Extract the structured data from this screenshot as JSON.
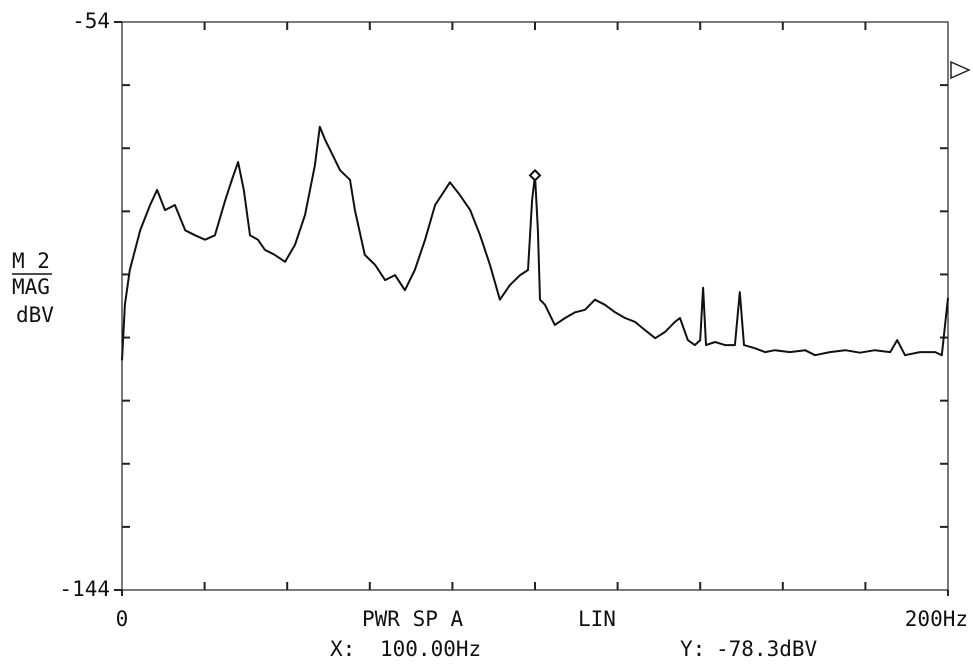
{
  "chart_data": {
    "type": "line",
    "ylabel_lines": [
      "M 2",
      "MAG",
      "dBV"
    ],
    "trace_label": "PWR SP A",
    "scale_label": "LIN",
    "marker": {
      "x": 100,
      "y": -78.3,
      "x_prefix": "X:",
      "x_label": "100.00Hz",
      "y_prefix": "Y:",
      "y_label": "-78.3dBV"
    },
    "xlim": [
      0,
      200
    ],
    "ylim": [
      -144,
      -54
    ],
    "xticks": [
      0,
      {
        "value": 200,
        "label": "200Hz"
      }
    ],
    "yticks": [
      -144,
      -54
    ],
    "x": [
      0,
      0.7,
      1.9,
      4.4,
      6.8,
      8.5,
      10.4,
      12.8,
      15.3,
      17.7,
      20.1,
      22.5,
      25.0,
      26.6,
      28.1,
      29.5,
      31.0,
      32.9,
      34.6,
      37.0,
      39.5,
      41.9,
      44.3,
      46.7,
      47.9,
      49.2,
      50.4,
      52.8,
      55.2,
      56.4,
      58.8,
      61.3,
      63.7,
      66.1,
      68.5,
      70.9,
      73.4,
      75.8,
      78.2,
      79.4,
      81.8,
      84.3,
      86.7,
      89.1,
      91.5,
      93.9,
      96.4,
      98.3,
      99.3,
      100,
      100.7,
      101.2,
      102.4,
      104.8,
      107.3,
      109.7,
      112.1,
      114.5,
      116.9,
      119.4,
      121.8,
      124.2,
      126.6,
      129.1,
      131.5,
      133.9,
      135.1,
      137.0,
      138.7,
      140.0,
      140.7,
      141.4,
      143.6,
      146.0,
      148.4,
      149.6,
      150.6,
      153.3,
      155.7,
      158.1,
      161.7,
      165.4,
      167.8,
      171.4,
      175.1,
      178.7,
      182.3,
      186.0,
      187.7,
      189.6,
      193.2,
      196.9,
      198.5,
      200
    ],
    "series": [
      {
        "color": "#111111",
        "values": [
          -107.6,
          -98.8,
          -93.3,
          -87.0,
          -83.0,
          -80.6,
          -83.8,
          -83.0,
          -87.0,
          -87.8,
          -88.5,
          -87.8,
          -82.2,
          -79.0,
          -76.2,
          -80.6,
          -87.8,
          -88.5,
          -90.1,
          -90.9,
          -92.0,
          -89.3,
          -84.6,
          -76.7,
          -70.6,
          -72.7,
          -74.3,
          -77.5,
          -79.0,
          -83.8,
          -90.9,
          -92.5,
          -94.9,
          -94.1,
          -96.5,
          -93.3,
          -88.5,
          -83.0,
          -80.6,
          -79.4,
          -81.4,
          -83.8,
          -87.8,
          -92.5,
          -98.0,
          -95.7,
          -94.1,
          -93.3,
          -82.2,
          -78.3,
          -87.0,
          -98.0,
          -98.8,
          -102.0,
          -100.9,
          -100.0,
          -99.6,
          -98.0,
          -98.8,
          -100.0,
          -100.9,
          -101.5,
          -102.8,
          -104.1,
          -103.1,
          -101.5,
          -100.9,
          -104.4,
          -105.2,
          -104.4,
          -96.1,
          -105.2,
          -104.7,
          -105.2,
          -105.2,
          -96.8,
          -105.2,
          -105.7,
          -106.3,
          -106.0,
          -106.3,
          -106.0,
          -106.8,
          -106.3,
          -106.0,
          -106.4,
          -106.0,
          -106.3,
          -104.4,
          -106.8,
          -106.3,
          -106.3,
          -106.8,
          -97.7
        ]
      }
    ]
  }
}
